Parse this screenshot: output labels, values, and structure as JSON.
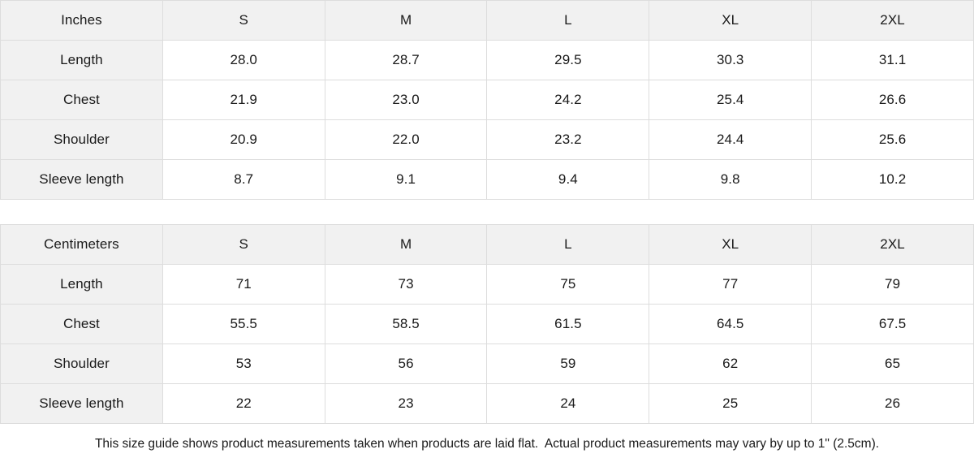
{
  "colors": {
    "header_bg": "#f1f1f1",
    "border": "#dddddd",
    "text": "#1a1a1a",
    "background": "#ffffff"
  },
  "chart_data": [
    {
      "type": "table",
      "unit_label": "Inches",
      "size_columns": [
        "S",
        "M",
        "L",
        "XL",
        "2XL"
      ],
      "rows": [
        {
          "label": "Length",
          "values": [
            "28.0",
            "28.7",
            "29.5",
            "30.3",
            "31.1"
          ]
        },
        {
          "label": "Chest",
          "values": [
            "21.9",
            "23.0",
            "24.2",
            "25.4",
            "26.6"
          ]
        },
        {
          "label": "Shoulder",
          "values": [
            "20.9",
            "22.0",
            "23.2",
            "24.4",
            "25.6"
          ]
        },
        {
          "label": "Sleeve length",
          "values": [
            "8.7",
            "9.1",
            "9.4",
            "9.8",
            "10.2"
          ]
        }
      ]
    },
    {
      "type": "table",
      "unit_label": "Centimeters",
      "size_columns": [
        "S",
        "M",
        "L",
        "XL",
        "2XL"
      ],
      "rows": [
        {
          "label": "Length",
          "values": [
            "71",
            "73",
            "75",
            "77",
            "79"
          ]
        },
        {
          "label": "Chest",
          "values": [
            "55.5",
            "58.5",
            "61.5",
            "64.5",
            "67.5"
          ]
        },
        {
          "label": "Shoulder",
          "values": [
            "53",
            "56",
            "59",
            "62",
            "65"
          ]
        },
        {
          "label": "Sleeve length",
          "values": [
            "22",
            "23",
            "24",
            "25",
            "26"
          ]
        }
      ]
    }
  ],
  "footer": {
    "note": "This size guide shows product measurements taken when products are laid flat.  Actual product measurements may vary by up to 1\" (2.5cm)."
  }
}
